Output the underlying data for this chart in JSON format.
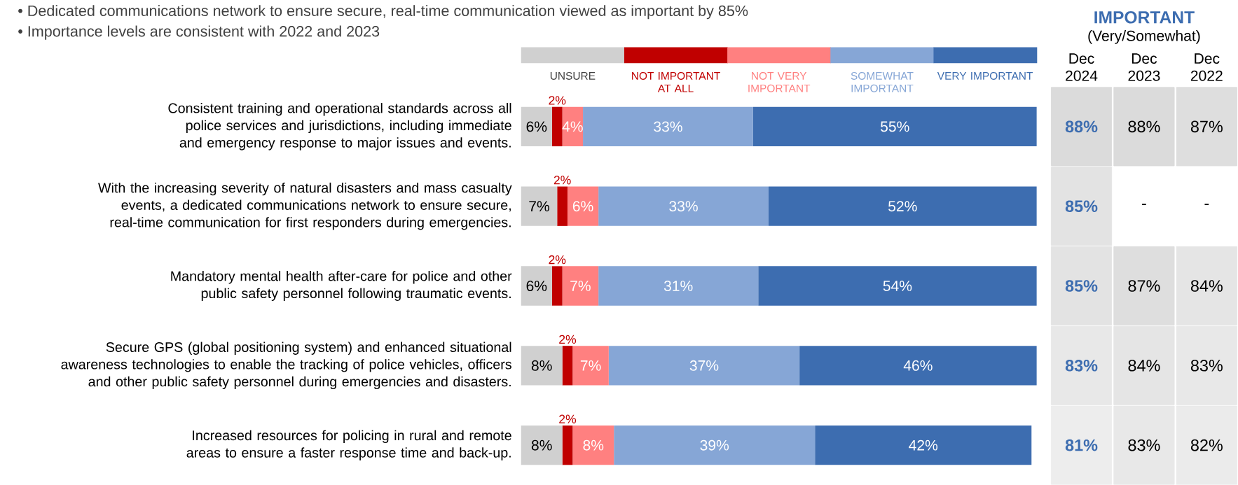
{
  "chart_data": [
    {
      "type": "bar",
      "orientation": "horizontal",
      "stacked": true,
      "legend": "top",
      "annotations": [
        "• Dedicated communications network to ensure secure, real-time communication viewed as important by 85%",
        "• Importance levels are consistent with 2022 and 2023"
      ],
      "categories": [
        "Consistent training and operational standards across all police services and jurisdictions, including immediate and emergency response to major issues and events.",
        "With the increasing severity of natural disasters and mass casualty events, a dedicated communications network to ensure secure, real-time communication for first responders during emergencies.",
        "Mandatory mental health after-care for police and other public safety personnel following traumatic events.",
        "Secure GPS (global positioning system) and enhanced situational awareness technologies to enable the tracking of police vehicles, officers and other public safety personnel during emergencies and disasters.",
        "Increased resources for policing in rural and remote areas to ensure a faster response time and back-up."
      ],
      "series": [
        {
          "name": "UNSURE",
          "color": "#d0d0d0",
          "values": [
            6,
            7,
            6,
            8,
            8
          ],
          "value_labels": [
            "6%",
            "7%",
            "6%",
            "8%",
            "8%"
          ]
        },
        {
          "name": "NOT IMPORTANT AT ALL",
          "color": "#c00000",
          "values": [
            2,
            2,
            2,
            2,
            2
          ],
          "value_labels": [
            "2%",
            "2%",
            "2%",
            "2%",
            "2%"
          ]
        },
        {
          "name": "NOT VERY IMPORTANT",
          "color": "#ff8080",
          "values": [
            4,
            6,
            7,
            7,
            8
          ],
          "value_labels": [
            "4%",
            "6%",
            "7%",
            "7%",
            "8%"
          ]
        },
        {
          "name": "SOMEWHAT IMPORTANT",
          "color": "#86a6d6",
          "values": [
            33,
            33,
            31,
            37,
            39
          ],
          "value_labels": [
            "33%",
            "33%",
            "31%",
            "37%",
            "39%"
          ]
        },
        {
          "name": "VERY IMPORTANT",
          "color": "#3d6db0",
          "values": [
            55,
            52,
            54,
            46,
            42
          ],
          "value_labels": [
            "55%",
            "52%",
            "54%",
            "46%",
            "42%"
          ]
        }
      ]
    },
    {
      "type": "heatmap",
      "title": "IMPORTANT",
      "subtitle": "(Very/Somewhat)",
      "tick_labels": "x",
      "categories": [
        "Dec 2024",
        "Dec 2023",
        "Dec 2022"
      ],
      "y_categories": [
        null,
        null,
        null,
        null,
        null
      ],
      "cells": [
        [
          88,
          88,
          87
        ],
        [
          85,
          null,
          null
        ],
        [
          85,
          87,
          84
        ],
        [
          83,
          84,
          83
        ],
        [
          81,
          83,
          82
        ]
      ],
      "cell_labels": [
        [
          "88%",
          "88%",
          "87%"
        ],
        [
          "85%",
          "-",
          "-"
        ],
        [
          "85%",
          "87%",
          "84%"
        ],
        [
          "83%",
          "84%",
          "83%"
        ],
        [
          "81%",
          "83%",
          "82%"
        ]
      ]
    }
  ]
}
